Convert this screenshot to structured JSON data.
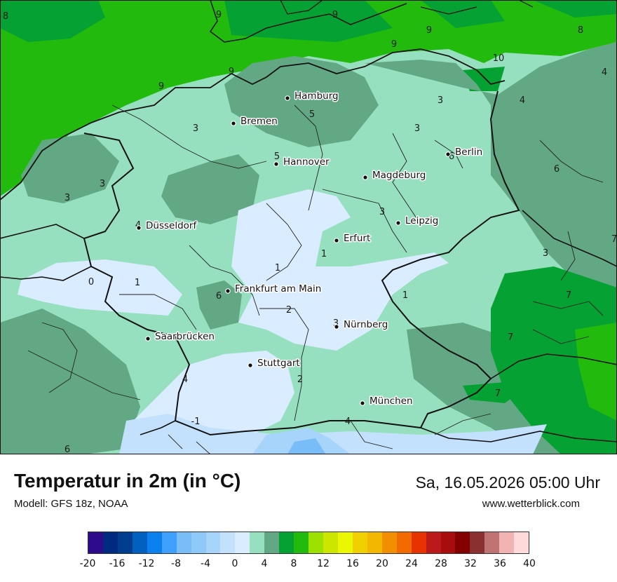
{
  "header": {
    "title": "Temperatur in 2m (in °C)",
    "model": "Modell: GFS 18z, NOAA",
    "datetime": "Sa, 16.05.2026 05:00 Uhr",
    "website": "www.wetterblick.com"
  },
  "map": {
    "cities": [
      {
        "name": "Hamburg"
      },
      {
        "name": "Bremen"
      },
      {
        "name": "Hannover"
      },
      {
        "name": "Berlin"
      },
      {
        "name": "Magdeburg"
      },
      {
        "name": "Leipzig"
      },
      {
        "name": "Düsseldorf"
      },
      {
        "name": "Erfurt"
      },
      {
        "name": "Frankfurt am Main"
      },
      {
        "name": "Nürnberg"
      },
      {
        "name": "Saarbrücken"
      },
      {
        "name": "Stuttgart"
      },
      {
        "name": "München"
      }
    ],
    "isolines": [
      "8",
      "9",
      "9",
      "9",
      "9",
      "9",
      "8",
      "10",
      "4",
      "9",
      "4",
      "3",
      "3",
      "5",
      "3",
      "6",
      "5",
      "3",
      "6",
      "3",
      "3",
      "4",
      "3",
      "1",
      "1",
      "1",
      "6",
      "0",
      "2",
      "3",
      "7",
      "1",
      "7",
      "7",
      "4",
      "2",
      "-1",
      "4",
      "6",
      "7"
    ]
  },
  "legend": {
    "colors": [
      "#2e0b8a",
      "#002a80",
      "#003d8f",
      "#005fbf",
      "#0a80ef",
      "#3ea0fa",
      "#78bdf8",
      "#8ec9fa",
      "#a7d4fb",
      "#c3e1fc",
      "#daecff",
      "#97e0bf",
      "#63a884",
      "#05a133",
      "#22bb0d",
      "#9ce000",
      "#cce600",
      "#ebf700",
      "#f2d000",
      "#f2b800",
      "#f28f00",
      "#f26a00",
      "#e83200",
      "#bc1a1a",
      "#a80d0d",
      "#820000",
      "#8b3030",
      "#c07373",
      "#f2b3b3",
      "#ffdada"
    ],
    "ticks": [
      "-20",
      "-16",
      "-12",
      "-8",
      "-4",
      "0",
      "4",
      "8",
      "12",
      "16",
      "20",
      "24",
      "28",
      "32",
      "36",
      "40"
    ],
    "min": -20,
    "max": 40
  }
}
